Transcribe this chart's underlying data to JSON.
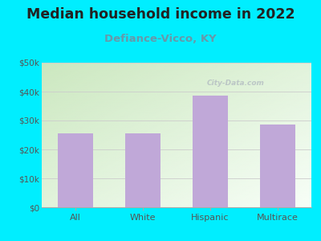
{
  "title": "Median household income in 2022",
  "subtitle": "Defiance-Vicco, KY",
  "categories": [
    "All",
    "White",
    "Hispanic",
    "Multirace"
  ],
  "values": [
    25500,
    25500,
    38500,
    28500
  ],
  "bar_color": "#c0a8d8",
  "title_fontsize": 12.5,
  "title_color": "#222222",
  "subtitle_fontsize": 9.5,
  "subtitle_color": "#6699aa",
  "tick_label_color": "#555555",
  "background_outer": "#00eeff",
  "ylim": [
    0,
    50000
  ],
  "yticks": [
    0,
    10000,
    20000,
    30000,
    40000,
    50000
  ],
  "ytick_labels": [
    "$0",
    "$10k",
    "$20k",
    "$30k",
    "$40k",
    "$50k"
  ],
  "watermark": "City-Data.com",
  "grad_top_left": "#cce8c0",
  "grad_bottom_right": "#f8fff8"
}
